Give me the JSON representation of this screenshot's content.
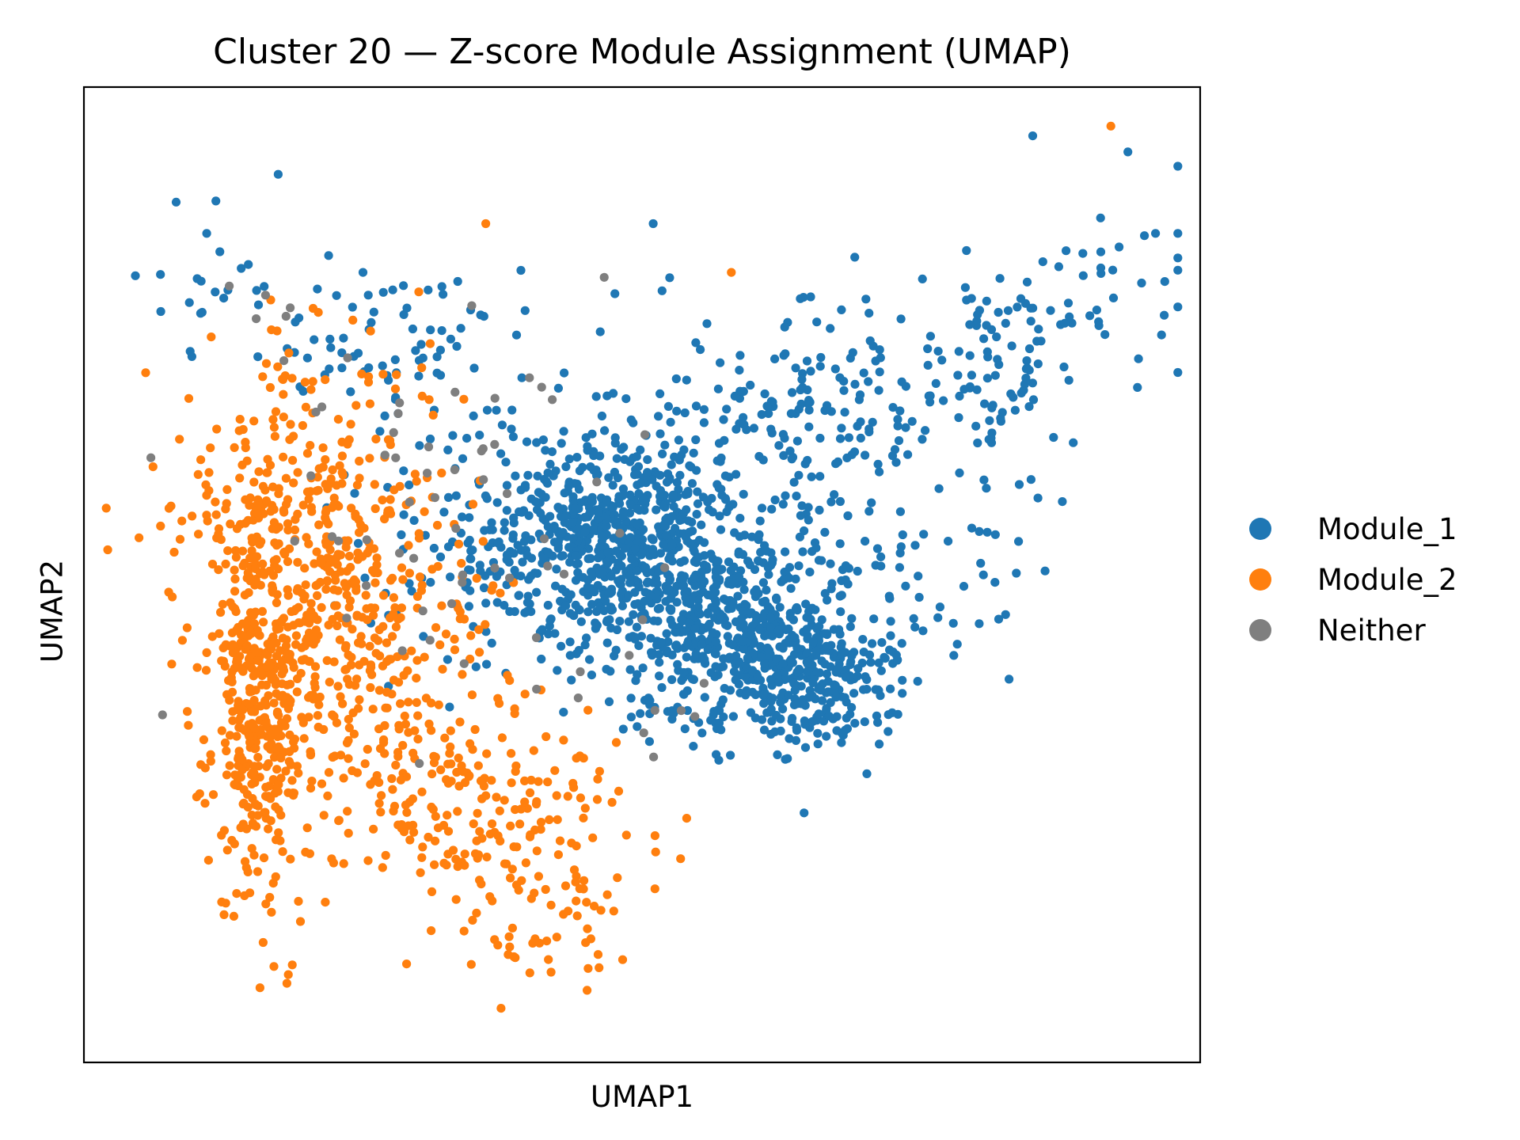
{
  "chart_data": {
    "type": "scatter",
    "title": "Cluster 20 — Z-score Module Assignment (UMAP)",
    "xlabel": "UMAP1",
    "ylabel": "UMAP2",
    "xlim": [
      0,
      100
    ],
    "ylim": [
      0,
      100
    ],
    "grid": false,
    "ticks": false,
    "legend_position": "right",
    "series": [
      {
        "name": "Module_1",
        "color": "#1f77b4"
      },
      {
        "name": "Module_2",
        "color": "#ff7f0e"
      },
      {
        "name": "Neither",
        "color": "#7f7f7f"
      }
    ]
  }
}
